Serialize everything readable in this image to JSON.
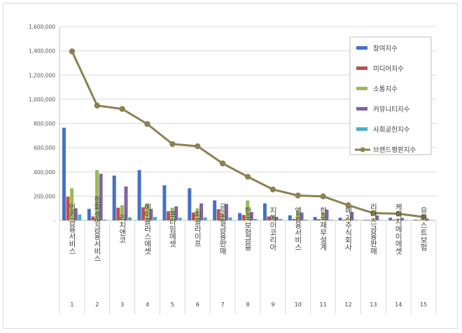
{
  "chart_data": {
    "type": "bar",
    "title": "",
    "xlabel": "",
    "ylabel": "",
    "ylim": [
      0,
      1600000
    ],
    "yticks": [
      0,
      200000,
      400000,
      600000,
      800000,
      1000000,
      1200000,
      1400000,
      1600000
    ],
    "ytick_labels": [
      "-",
      "200,000",
      "400,000",
      "600,000",
      "800,000",
      "1,000,000",
      "1,200,000",
      "1,400,000",
      "1,600,000"
    ],
    "ranks": [
      "1",
      "2",
      "3",
      "4",
      "5",
      "6",
      "7",
      "8",
      "9",
      "10",
      "11",
      "12",
      "13",
      "14",
      "15"
    ],
    "categories": [
      "인카금융서비스",
      "한화생명금융서비스",
      "리치앤코",
      "에이플러스에셋",
      "프라임에셋",
      "피플라이프",
      "글로벌금융판매",
      "한국보험금융",
      "지에이코리아",
      "엠금융서비스",
      "한국재무설계",
      "메가주식회사",
      "리더스금융판매",
      "케이지에이에셋",
      "유퍼스트보험"
    ],
    "grid": true,
    "legend_position": "right",
    "series": [
      {
        "name": "참여지수",
        "kind": "bar",
        "color": "#4472c4",
        "values": [
          765000,
          95000,
          370000,
          415000,
          290000,
          265000,
          165000,
          60000,
          140000,
          42000,
          28000,
          22000,
          5000,
          22000,
          6000
        ]
      },
      {
        "name": "미디어지수",
        "kind": "bar",
        "color": "#c0504d",
        "values": [
          195000,
          32000,
          105000,
          108000,
          75000,
          65000,
          92000,
          45000,
          32000,
          12000,
          10000,
          6000,
          4000,
          6000,
          4000
        ]
      },
      {
        "name": "소통지수",
        "kind": "bar",
        "color": "#9bbb59",
        "values": [
          265000,
          415000,
          125000,
          140000,
          105000,
          100000,
          55000,
          165000,
          40000,
          80000,
          68000,
          20000,
          18000,
          8000,
          6000
        ]
      },
      {
        "name": "커뮤니티지수",
        "kind": "bar",
        "color": "#8064a2",
        "values": [
          100000,
          385000,
          280000,
          95000,
          115000,
          140000,
          135000,
          70000,
          28000,
          65000,
          88000,
          70000,
          40000,
          20000,
          14000
        ]
      },
      {
        "name": "사회공헌지수",
        "kind": "bar",
        "color": "#4bacc6",
        "values": [
          48000,
          8000,
          25000,
          28000,
          22000,
          25000,
          25000,
          12000,
          12000,
          6000,
          6000,
          5000,
          3000,
          3000,
          2000
        ]
      },
      {
        "name": "브랜드평판지수",
        "kind": "line",
        "color": "#8b8152",
        "values": [
          1395000,
          948000,
          920000,
          795000,
          630000,
          612000,
          470000,
          360000,
          255000,
          205000,
          198000,
          125000,
          60000,
          55000,
          28000
        ]
      }
    ]
  }
}
